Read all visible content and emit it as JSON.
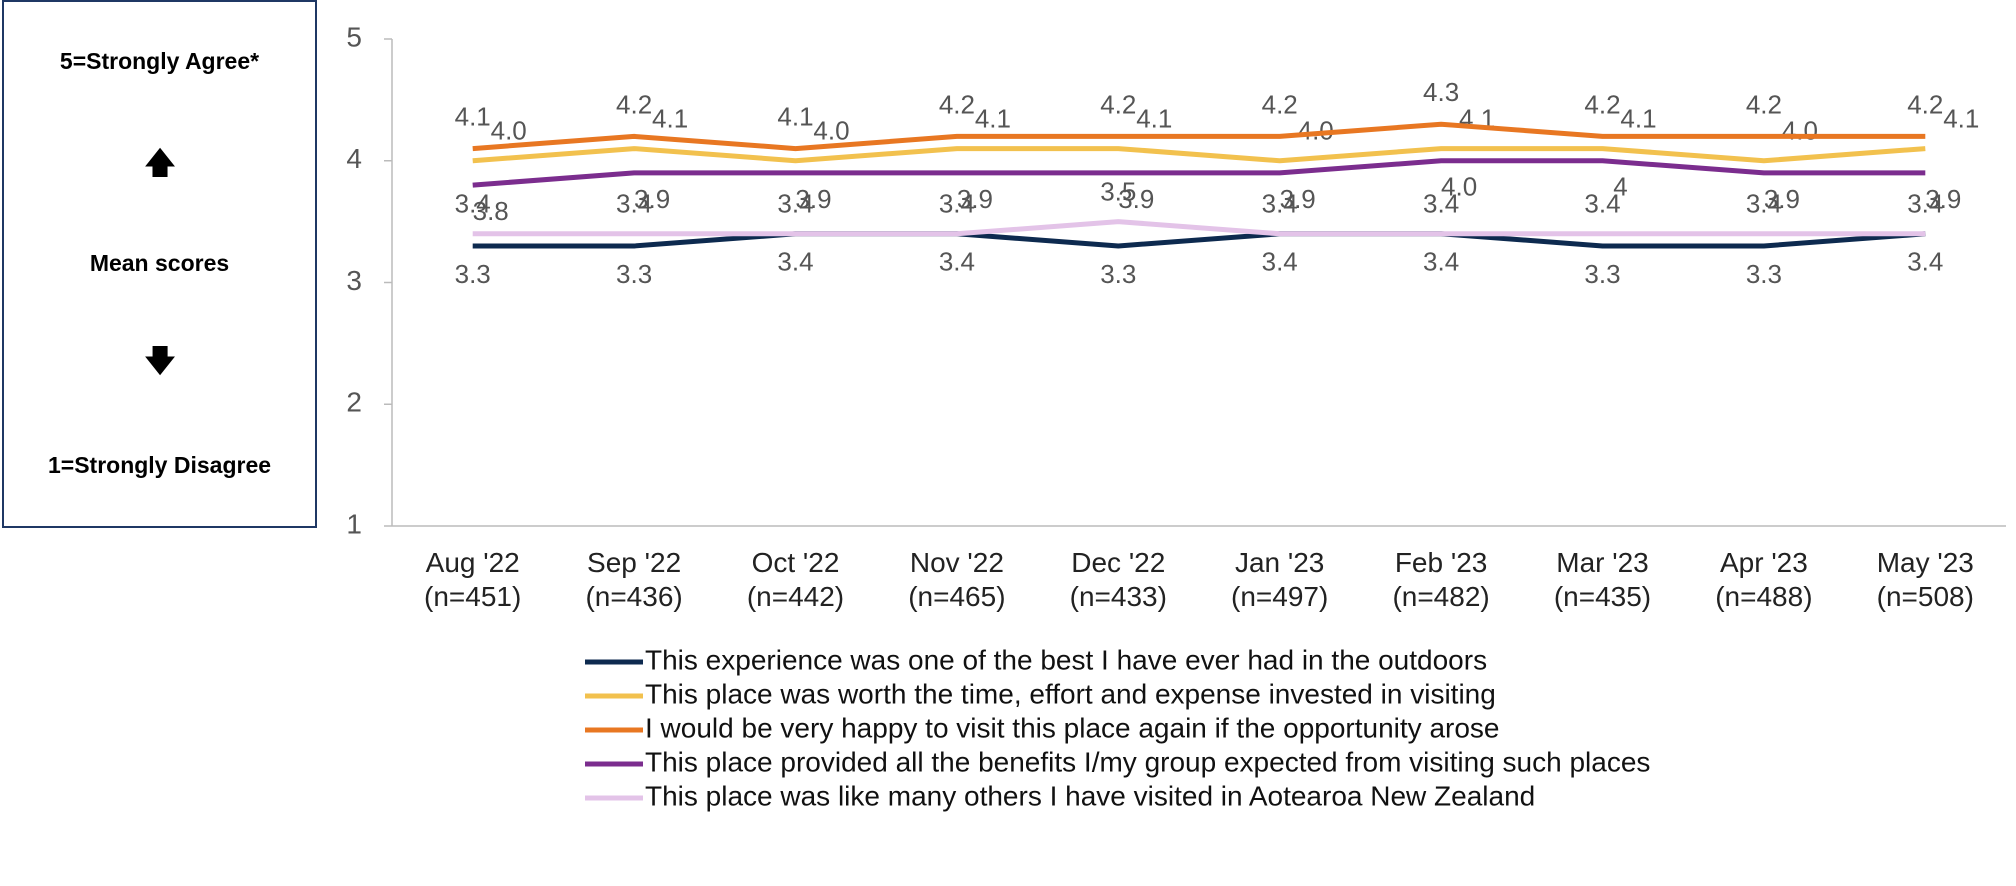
{
  "chart_data": {
    "type": "line",
    "side_labels": {
      "top": "5=Strongly Agree*",
      "middle": "Mean scores",
      "bottom": "1=Strongly Disagree"
    },
    "categories": [
      "Aug '22\n(n=451)",
      "Sep '22\n(n=436)",
      "Oct '22\n(n=442)",
      "Nov '22\n(n=465)",
      "Dec '22\n(n=433)",
      "Jan '23\n(n=497)",
      "Feb '23\n(n=482)",
      "Mar '23\n(n=435)",
      "Apr '23\n(n=488)",
      "May '23\n(n=508)"
    ],
    "ylim": [
      1,
      5
    ],
    "yticks": [
      1,
      2,
      3,
      4,
      5
    ],
    "grid": false,
    "series": [
      {
        "name": "This experience was one of the best I have ever had in the outdoors",
        "color": "#0d2a4f",
        "values": [
          3.3,
          3.3,
          3.4,
          3.4,
          3.3,
          3.4,
          3.4,
          3.3,
          3.3,
          3.4
        ],
        "value_labels": [
          "3.3",
          "3.3",
          "3.4",
          "3.4",
          "3.3",
          "3.4",
          "3.4",
          "3.3",
          "3.3",
          "3.4"
        ]
      },
      {
        "name": "This place was worth the time, effort and expense invested in visiting",
        "color": "#f2c14e",
        "values": [
          4.0,
          4.1,
          4.0,
          4.1,
          4.1,
          4.0,
          4.1,
          4.1,
          4.0,
          4.1
        ],
        "value_labels": [
          "4.0",
          "4.1",
          "4.0",
          "4.1",
          "4.1",
          "4.0",
          "4.1",
          "4.1",
          "4.0",
          "4.1"
        ]
      },
      {
        "name": "I would be very happy to visit this place again if the opportunity arose",
        "color": "#e87722",
        "values": [
          4.1,
          4.2,
          4.1,
          4.2,
          4.2,
          4.2,
          4.3,
          4.2,
          4.2,
          4.2
        ],
        "value_labels": [
          "4.1",
          "4.2",
          "4.1",
          "4.2",
          "4.2",
          "4.2",
          "4.3",
          "4.2",
          "4.2",
          "4.2"
        ]
      },
      {
        "name": "This place provided all the benefits I/my group expected from visiting such places",
        "color": "#7b2d8e",
        "values": [
          3.8,
          3.9,
          3.9,
          3.9,
          3.9,
          3.9,
          4.0,
          4,
          3.9,
          3.9
        ],
        "value_labels": [
          "3.8",
          "3.9",
          "3.9",
          "3.9",
          "3.9",
          "3.9",
          "4.0",
          "4",
          "3.9",
          "3.9"
        ]
      },
      {
        "name": "This place was like many others I have visited in Aotearoa New Zealand",
        "color": "#e3c3e8",
        "values": [
          3.4,
          3.4,
          3.4,
          3.4,
          3.5,
          3.4,
          3.4,
          3.4,
          3.4,
          3.4
        ],
        "value_labels": [
          "3.4",
          "3.4",
          "3.4",
          "3.4",
          "3.5",
          "3.4",
          "3.4",
          "3.4",
          "3.4",
          "3.4"
        ]
      }
    ]
  }
}
